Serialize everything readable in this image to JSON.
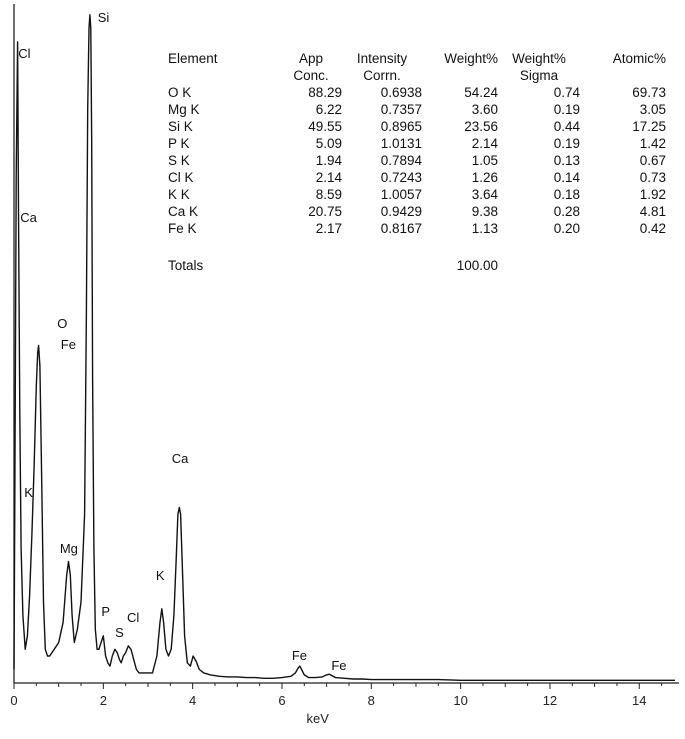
{
  "chart_data": {
    "type": "line",
    "title": "",
    "xlabel": "keV",
    "ylabel": "",
    "xlim": [
      0,
      14.8
    ],
    "ylim": [
      0,
      1.0
    ],
    "x_ticks": [
      "0",
      "2",
      "4",
      "6",
      "8",
      "10",
      "12",
      "14"
    ],
    "series": [
      {
        "x": [
          0.0,
          0.02,
          0.05,
          0.08,
          0.1,
          0.13,
          0.16,
          0.2,
          0.25,
          0.3,
          0.35,
          0.4,
          0.45,
          0.5,
          0.53,
          0.55,
          0.58,
          0.62,
          0.66,
          0.7,
          0.75,
          0.8,
          0.9,
          1.0,
          1.1,
          1.18,
          1.22,
          1.26,
          1.3,
          1.35,
          1.42,
          1.5,
          1.58,
          1.62,
          1.65,
          1.68,
          1.7,
          1.72,
          1.74,
          1.76,
          1.79,
          1.82,
          1.86,
          1.9,
          1.95,
          2.0,
          2.05,
          2.1,
          2.15,
          2.2,
          2.26,
          2.31,
          2.36,
          2.4,
          2.45,
          2.5,
          2.56,
          2.62,
          2.68,
          2.74,
          2.8,
          2.9,
          3.0,
          3.1,
          3.2,
          3.27,
          3.31,
          3.35,
          3.4,
          3.46,
          3.52,
          3.58,
          3.63,
          3.67,
          3.7,
          3.73,
          3.77,
          3.82,
          3.88,
          3.95,
          4.01,
          4.08,
          4.15,
          4.25,
          4.4,
          4.6,
          4.8,
          5.0,
          5.2,
          5.4,
          5.6,
          5.8,
          6.0,
          6.2,
          6.3,
          6.36,
          6.4,
          6.44,
          6.5,
          6.6,
          6.75,
          6.9,
          7.0,
          7.06,
          7.12,
          7.2,
          7.4,
          7.6,
          7.8,
          8.0,
          8.5,
          9.0,
          9.5,
          10.0,
          10.5,
          11.0,
          11.5,
          12.0,
          12.5,
          13.0,
          13.5,
          14.0,
          14.5,
          14.8
        ],
        "values": [
          0.02,
          0.3,
          0.75,
          0.95,
          0.7,
          0.4,
          0.2,
          0.1,
          0.05,
          0.07,
          0.13,
          0.22,
          0.32,
          0.44,
          0.49,
          0.5,
          0.47,
          0.3,
          0.12,
          0.05,
          0.04,
          0.04,
          0.05,
          0.06,
          0.09,
          0.16,
          0.18,
          0.16,
          0.1,
          0.06,
          0.08,
          0.12,
          0.25,
          0.55,
          0.85,
          0.97,
          0.99,
          0.97,
          0.8,
          0.45,
          0.2,
          0.08,
          0.05,
          0.05,
          0.06,
          0.07,
          0.04,
          0.03,
          0.025,
          0.04,
          0.05,
          0.045,
          0.035,
          0.03,
          0.04,
          0.045,
          0.055,
          0.05,
          0.035,
          0.02,
          0.015,
          0.015,
          0.015,
          0.015,
          0.04,
          0.09,
          0.11,
          0.09,
          0.05,
          0.04,
          0.05,
          0.1,
          0.18,
          0.25,
          0.26,
          0.25,
          0.17,
          0.07,
          0.03,
          0.025,
          0.04,
          0.032,
          0.02,
          0.015,
          0.012,
          0.01,
          0.009,
          0.009,
          0.008,
          0.008,
          0.007,
          0.007,
          0.008,
          0.01,
          0.015,
          0.022,
          0.025,
          0.02,
          0.012,
          0.008,
          0.008,
          0.009,
          0.012,
          0.013,
          0.011,
          0.008,
          0.007,
          0.006,
          0.006,
          0.005,
          0.005,
          0.005,
          0.005,
          0.004,
          0.004,
          0.004,
          0.004,
          0.004,
          0.004,
          0.004,
          0.004,
          0.004,
          0.004,
          0.004
        ]
      }
    ],
    "annotations": [
      {
        "text": "Cl",
        "x": 0.05
      },
      {
        "text": "Ca",
        "x": 0.05
      },
      {
        "text": "O",
        "x": 0.52
      },
      {
        "text": "Fe",
        "x": 0.6
      },
      {
        "text": "K",
        "x": 0.05
      },
      {
        "text": "Si",
        "x": 1.74
      },
      {
        "text": "Mg",
        "x": 1.25
      },
      {
        "text": "P",
        "x": 2.0
      },
      {
        "text": "S",
        "x": 2.31
      },
      {
        "text": "Cl",
        "x": 2.62
      },
      {
        "text": "K",
        "x": 3.31
      },
      {
        "text": "Ca",
        "x": 3.69
      },
      {
        "text": "Fe",
        "x": 6.4
      },
      {
        "text": "Fe",
        "x": 7.06
      }
    ]
  },
  "table": {
    "headers": [
      [
        "Element"
      ],
      [
        "App",
        "Conc."
      ],
      [
        "Intensity",
        "Corrn."
      ],
      [
        "Weight%"
      ],
      [
        "Weight%",
        "Sigma"
      ],
      [
        "Atomic%"
      ]
    ],
    "rows": [
      [
        "O K",
        "88.29",
        "0.6938",
        "54.24",
        "0.74",
        "69.73"
      ],
      [
        "Mg K",
        "6.22",
        "0.7357",
        "3.60",
        "0.19",
        "3.05"
      ],
      [
        "Si K",
        "49.55",
        "0.8965",
        "23.56",
        "0.44",
        "17.25"
      ],
      [
        "P K",
        "5.09",
        "1.0131",
        "2.14",
        "0.19",
        "1.42"
      ],
      [
        "S K",
        "1.94",
        "0.7894",
        "1.05",
        "0.13",
        "0.67"
      ],
      [
        "Cl K",
        "2.14",
        "0.7243",
        "1.26",
        "0.14",
        "0.73"
      ],
      [
        "K K",
        "8.59",
        "1.0057",
        "3.64",
        "0.18",
        "1.92"
      ],
      [
        "Ca K",
        "20.75",
        "0.9429",
        "9.38",
        "0.28",
        "4.81"
      ],
      [
        "Fe K",
        "2.17",
        "0.8167",
        "1.13",
        "0.20",
        "0.42"
      ]
    ],
    "totals": {
      "label": "Totals",
      "weight": "100.00"
    }
  }
}
